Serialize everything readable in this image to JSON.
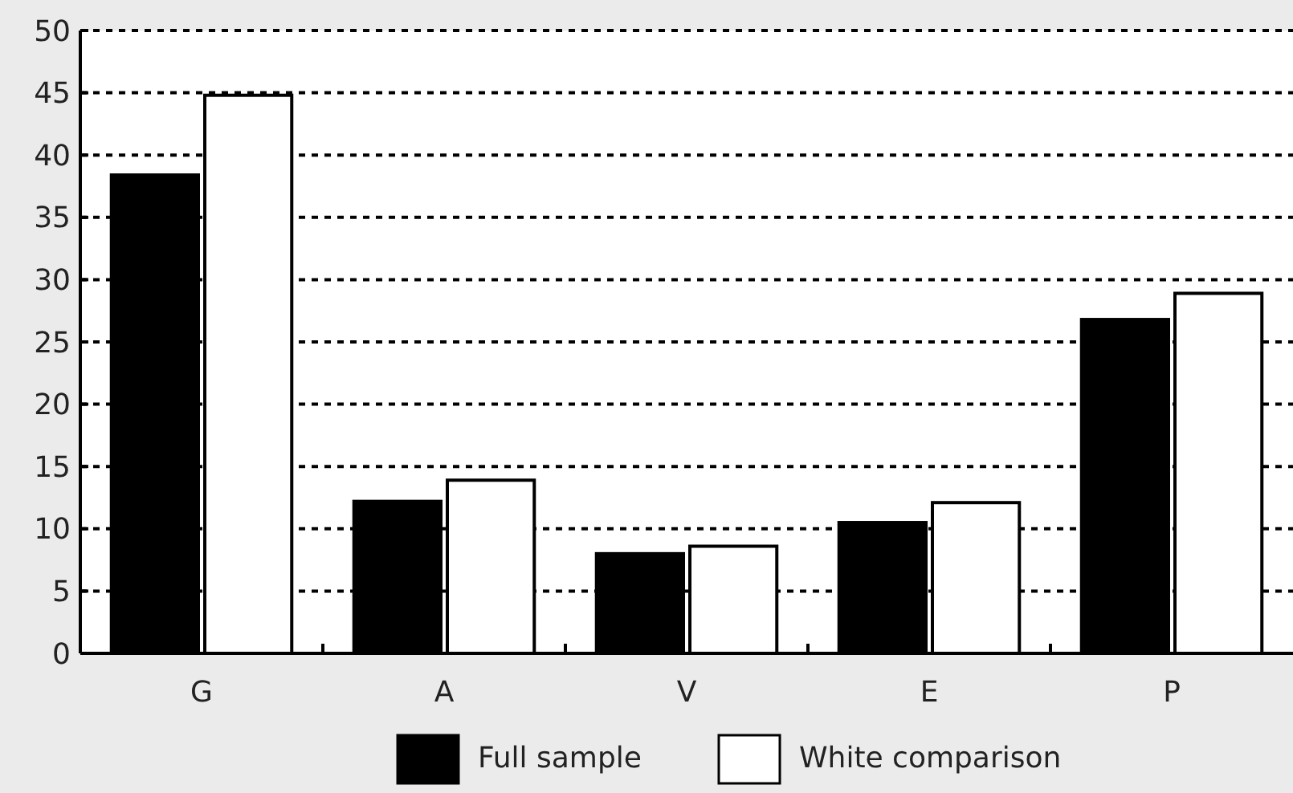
{
  "chart_data": {
    "type": "bar",
    "categories": [
      "G",
      "A",
      "V",
      "E",
      "P"
    ],
    "series": [
      {
        "name": "Full sample",
        "color": "#000000",
        "values": [
          38.4,
          12.2,
          8.0,
          10.5,
          26.8
        ]
      },
      {
        "name": "White comparison",
        "color": "#ffffff",
        "values": [
          44.8,
          13.9,
          8.6,
          12.1,
          28.9
        ]
      }
    ],
    "ylim": [
      0,
      50
    ],
    "yticks": [
      0,
      5,
      10,
      15,
      20,
      25,
      30,
      35,
      40,
      45,
      50
    ],
    "grid": "y",
    "legend": "bottom"
  }
}
